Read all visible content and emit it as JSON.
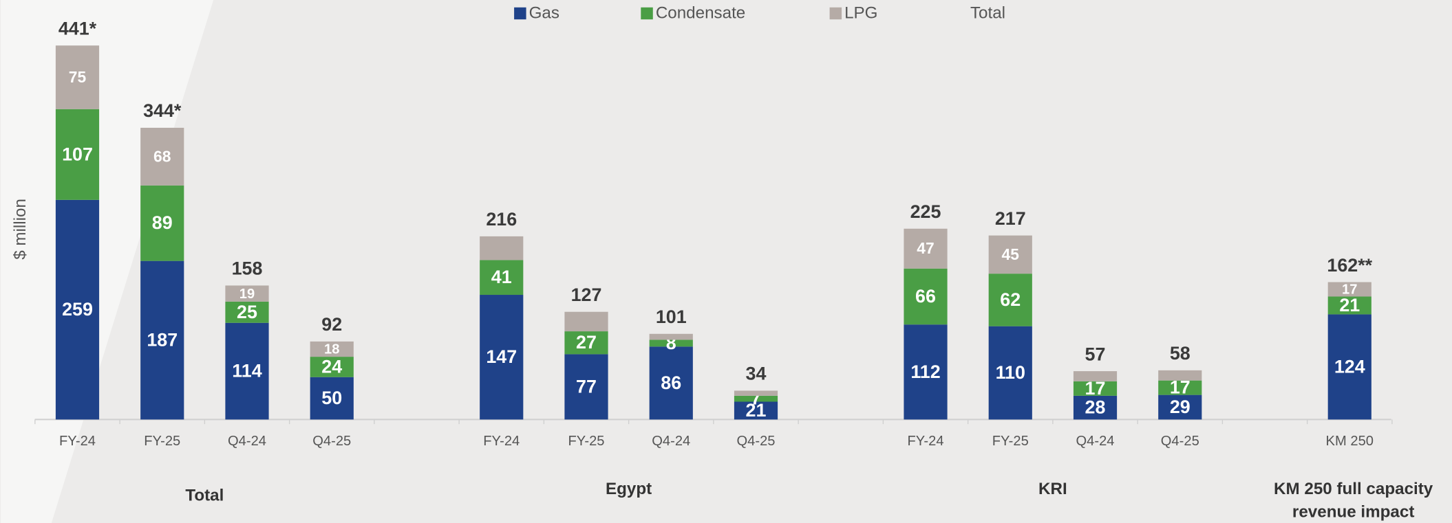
{
  "chart_data": {
    "type": "stacked-bar",
    "y_label": "$ million",
    "categories": [
      "FY-24",
      "FY-25",
      "Q4-24",
      "Q4-25",
      null,
      "FY-24",
      "FY-25",
      "Q4-24",
      "Q4-25",
      null,
      "FY-24",
      "FY-25",
      "Q4-24",
      "Q4-25",
      null,
      "KM 250"
    ],
    "group_labels": [
      [
        "Total"
      ],
      [
        "Egypt"
      ],
      [
        "KRI"
      ],
      [
        "KM 250 full capacity",
        "revenue impact"
      ]
    ],
    "series": [
      {
        "name": "Gas",
        "color": "#1f4289",
        "values": [
          259,
          187,
          114,
          50,
          null,
          147,
          77,
          86,
          21,
          null,
          112,
          110,
          28,
          29,
          null,
          124
        ],
        "value_labels": [
          "259",
          "187",
          "114",
          "50",
          null,
          "147",
          "77",
          "86",
          "21",
          null,
          "112",
          "110",
          "28",
          "29",
          null,
          "124"
        ]
      },
      {
        "name": "Condensate",
        "color": "#4a9e45",
        "values": [
          107,
          89,
          25,
          24,
          null,
          41,
          27,
          8,
          7,
          null,
          66,
          62,
          17,
          17,
          null,
          21
        ],
        "value_labels": [
          "107",
          "89",
          "25",
          "24",
          null,
          "41",
          "27",
          "8",
          "7",
          null,
          "66",
          "62",
          "17",
          "17",
          null,
          "21"
        ]
      },
      {
        "name": "LPG",
        "color": "#b5aba6",
        "values": [
          75,
          68,
          19,
          18,
          null,
          28,
          23,
          7,
          6,
          null,
          47,
          45,
          12,
          12,
          null,
          17
        ],
        "value_labels": [
          "75",
          "68",
          "19",
          "18",
          null,
          null,
          null,
          null,
          null,
          null,
          "47",
          "45",
          null,
          null,
          null,
          "17"
        ]
      }
    ],
    "total": {
      "name": "Total",
      "values": [
        441,
        344,
        158,
        92,
        null,
        216,
        127,
        101,
        34,
        null,
        225,
        217,
        57,
        58,
        null,
        162
      ],
      "value_labels": [
        "441*",
        "344*",
        "158",
        "92",
        null,
        "216",
        "127",
        "101",
        "34",
        null,
        "225",
        "217",
        "57",
        "58",
        null,
        "162**"
      ]
    },
    "ylim": [
      0,
      450
    ]
  }
}
